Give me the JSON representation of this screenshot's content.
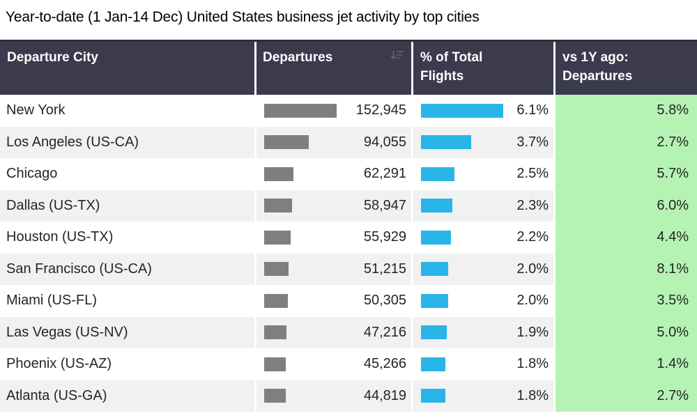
{
  "title": "Year-to-date (1 Jan-14 Dec) United States business jet activity by top cities",
  "colors": {
    "header_bg": "#3b3b4d",
    "header_border": "#2c2c3a",
    "header_text": "#ffffff",
    "row_alt_bg": "#f1f1f1",
    "bar_gray": "#7f7f7f",
    "bar_blue": "#29b5e8",
    "green_bg": "#b5f3b5",
    "cell_text": "#252525"
  },
  "table": {
    "columns": {
      "c1": "Departure City",
      "c2": "Departures",
      "c2_icon": "sort-descending-icon",
      "c3": "% of Total Flights",
      "c4": "vs 1Y ago: Departures"
    },
    "rows": [
      {
        "city": "New York",
        "departures_label": "152,945",
        "departures_value": 152945,
        "pct_label": "6.1%",
        "pct_value": 6.1,
        "vs_label": "5.8%"
      },
      {
        "city": "Los Angeles (US-CA)",
        "departures_label": "94,055",
        "departures_value": 94055,
        "pct_label": "3.7%",
        "pct_value": 3.7,
        "vs_label": "2.7%"
      },
      {
        "city": "Chicago",
        "departures_label": "62,291",
        "departures_value": 62291,
        "pct_label": "2.5%",
        "pct_value": 2.5,
        "vs_label": "5.7%"
      },
      {
        "city": "Dallas (US-TX)",
        "departures_label": "58,947",
        "departures_value": 58947,
        "pct_label": "2.3%",
        "pct_value": 2.3,
        "vs_label": "6.0%"
      },
      {
        "city": "Houston (US-TX)",
        "departures_label": "55,929",
        "departures_value": 55929,
        "pct_label": "2.2%",
        "pct_value": 2.2,
        "vs_label": "4.4%"
      },
      {
        "city": "San Francisco (US-CA)",
        "departures_label": "51,215",
        "departures_value": 51215,
        "pct_label": "2.0%",
        "pct_value": 2.0,
        "vs_label": "8.1%"
      },
      {
        "city": "Miami (US-FL)",
        "departures_label": "50,305",
        "departures_value": 50305,
        "pct_label": "2.0%",
        "pct_value": 2.0,
        "vs_label": "3.5%"
      },
      {
        "city": "Las Vegas (US-NV)",
        "departures_label": "47,216",
        "departures_value": 47216,
        "pct_label": "1.9%",
        "pct_value": 1.9,
        "vs_label": "5.0%"
      },
      {
        "city": "Phoenix (US-AZ)",
        "departures_label": "45,266",
        "departures_value": 45266,
        "pct_label": "1.8%",
        "pct_value": 1.8,
        "vs_label": "1.4%"
      },
      {
        "city": "Atlanta (US-GA)",
        "departures_label": "44,819",
        "departures_value": 44819,
        "pct_label": "1.8%",
        "pct_value": 1.8,
        "vs_label": "2.7%"
      }
    ]
  },
  "bars": {
    "departures_max": 152945,
    "pct_max": 6.1
  },
  "chart_data": {
    "type": "table",
    "title": "Year-to-date (1 Jan-14 Dec) United States business jet activity by top cities",
    "columns": [
      "Departure City",
      "Departures",
      "% of Total Flights",
      "vs 1Y ago: Departures"
    ],
    "rows": [
      [
        "New York",
        152945,
        6.1,
        5.8
      ],
      [
        "Los Angeles (US-CA)",
        94055,
        3.7,
        2.7
      ],
      [
        "Chicago",
        62291,
        2.5,
        5.7
      ],
      [
        "Dallas (US-TX)",
        58947,
        2.3,
        6.0
      ],
      [
        "Houston (US-TX)",
        55929,
        2.2,
        4.4
      ],
      [
        "San Francisco (US-CA)",
        51215,
        2.0,
        8.1
      ],
      [
        "Miami (US-FL)",
        50305,
        2.0,
        3.5
      ],
      [
        "Las Vegas (US-NV)",
        47216,
        1.9,
        5.0
      ],
      [
        "Phoenix (US-AZ)",
        45266,
        1.8,
        1.4
      ],
      [
        "Atlanta (US-GA)",
        44819,
        1.8,
        2.7
      ]
    ],
    "notes": {
      "pct_unit": "%",
      "vs_unit": "%",
      "departures_bar_color": "#7f7f7f",
      "pct_bar_color": "#29b5e8",
      "vs_column_bg": "#b5f3b5"
    }
  }
}
